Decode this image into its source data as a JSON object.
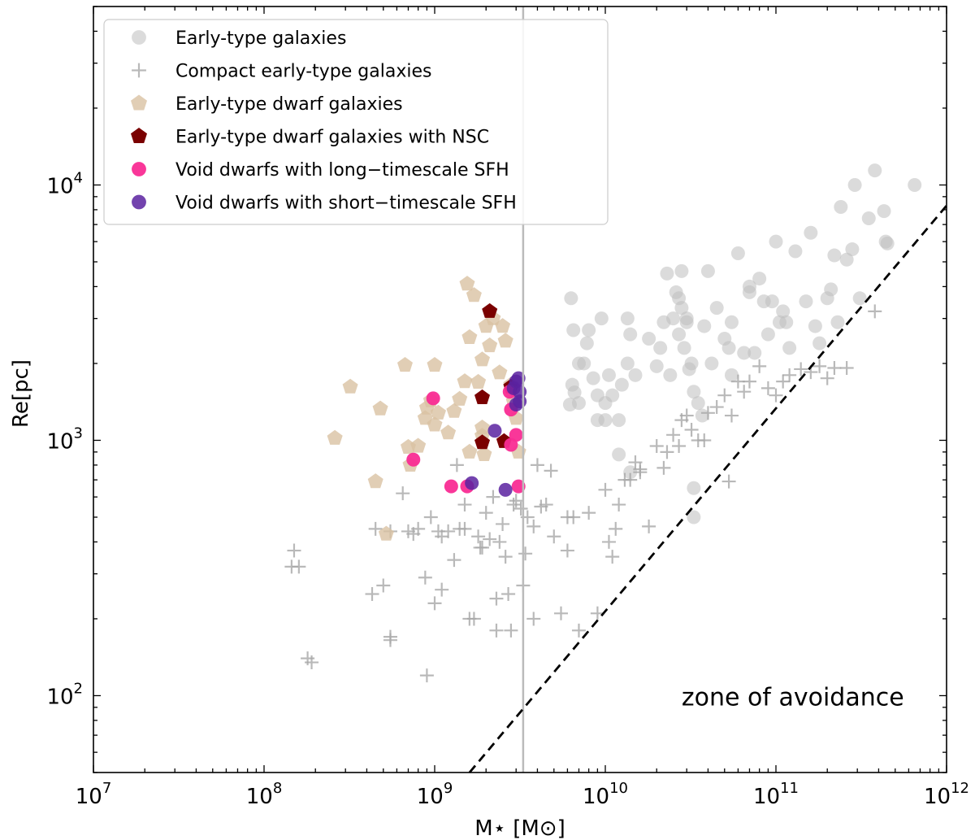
{
  "chart_data": {
    "type": "scatter",
    "xscale": "log",
    "yscale": "log",
    "xlim": [
      10000000,
      1000000000000
    ],
    "ylim": [
      50,
      50000
    ],
    "xlabel": "M⋆ [M⊙]",
    "ylabel": "Re[pc]",
    "x_ticks": [
      {
        "value": 10000000,
        "base": "10",
        "exp": "7"
      },
      {
        "value": 100000000,
        "base": "10",
        "exp": "8"
      },
      {
        "value": 1000000000,
        "base": "10",
        "exp": "9"
      },
      {
        "value": 10000000000,
        "base": "10",
        "exp": "10"
      },
      {
        "value": 100000000000,
        "base": "10",
        "exp": "11"
      },
      {
        "value": 1000000000000,
        "base": "10",
        "exp": "12"
      }
    ],
    "y_ticks": [
      {
        "value": 100,
        "base": "10",
        "exp": "2"
      },
      {
        "value": 1000,
        "base": "10",
        "exp": "3"
      },
      {
        "value": 10000,
        "base": "10",
        "exp": "4"
      }
    ],
    "vertical_line": {
      "x": 3300000000,
      "color": "#bbbbbb"
    },
    "dashed_line": {
      "points": [
        [
          1600000000,
          50
        ],
        [
          1000000000000,
          8300
        ]
      ],
      "color": "#000000"
    },
    "annotation": {
      "text": "zone of avoidance",
      "x": 28000000000,
      "y": 100
    },
    "legend_position": "top-left",
    "series": [
      {
        "name": "Early-type galaxies",
        "marker": "circle",
        "color": "#bdbdbd",
        "opacity": 0.55,
        "points": [
          [
            6300000000.0,
            3600
          ],
          [
            6500000000.0,
            2700
          ],
          [
            6400000000.0,
            1650
          ],
          [
            6200000000.0,
            1380
          ],
          [
            6600000000.0,
            1540
          ],
          [
            7000000000.0,
            1400
          ],
          [
            7500000000.0,
            2000
          ],
          [
            7800000000.0,
            2400
          ],
          [
            8000000000.0,
            2700
          ],
          [
            8500000000.0,
            1750
          ],
          [
            9000000000.0,
            1500
          ],
          [
            9500000000.0,
            3000
          ],
          [
            10000000000.0,
            1200
          ],
          [
            10000000000.0,
            1400
          ],
          [
            10500000000.0,
            1800
          ],
          [
            11000000000.0,
            1500
          ],
          [
            12000000000.0,
            1200
          ],
          [
            12500000000.0,
            1650
          ],
          [
            13500000000.0,
            2000
          ],
          [
            14000000000.0,
            2600
          ],
          [
            13500000000.0,
            3000
          ],
          [
            15000000000.0,
            1800
          ],
          [
            12000000000.0,
            880
          ],
          [
            14000000000.0,
            750
          ],
          [
            18000000000.0,
            2500
          ],
          [
            20000000000.0,
            1950
          ],
          [
            21000000000.0,
            2300
          ],
          [
            23000000000.0,
            4500
          ],
          [
            24000000000.0,
            1800
          ],
          [
            25000000000.0,
            3000
          ],
          [
            26000000000.0,
            3800
          ],
          [
            27000000000.0,
            3600
          ],
          [
            28000000000.0,
            4600
          ],
          [
            28000000000.0,
            3300
          ],
          [
            27000000000.0,
            2600
          ],
          [
            29000000000.0,
            2300
          ],
          [
            30000000000.0,
            2900
          ],
          [
            31000000000.0,
            1900
          ],
          [
            32000000000.0,
            2000
          ],
          [
            33000000000.0,
            1550
          ],
          [
            35000000000.0,
            1400
          ],
          [
            37000000000.0,
            1250
          ],
          [
            33000000000.0,
            650
          ],
          [
            33000000000.0,
            500
          ],
          [
            38000000000.0,
            2800
          ],
          [
            40000000000.0,
            4600
          ],
          [
            45000000000.0,
            3300
          ],
          [
            50000000000.0,
            2500
          ],
          [
            53000000000.0,
            2300
          ],
          [
            55000000000.0,
            2900
          ],
          [
            60000000000.0,
            5400
          ],
          [
            65000000000.0,
            2200
          ],
          [
            70000000000.0,
            3800
          ],
          [
            70000000000.0,
            4000
          ],
          [
            75000000000.0,
            2200
          ],
          [
            80000000000.0,
            4300
          ],
          [
            85000000000.0,
            3500
          ],
          [
            90000000000.0,
            2600
          ],
          [
            95000000000.0,
            3500
          ],
          [
            100000000000.0,
            6000
          ],
          [
            105000000000.0,
            2900
          ],
          [
            110000000000.0,
            3200
          ],
          [
            115000000000.0,
            2900
          ],
          [
            120000000000.0,
            2300
          ],
          [
            130000000000.0,
            5500
          ],
          [
            150000000000.0,
            3500
          ],
          [
            160000000000.0,
            6500
          ],
          [
            170000000000.0,
            2800
          ],
          [
            180000000000.0,
            2400
          ],
          [
            200000000000.0,
            3600
          ],
          [
            210000000000.0,
            3900
          ],
          [
            220000000000.0,
            5300
          ],
          [
            230000000000.0,
            2900
          ],
          [
            240000000000.0,
            8200
          ],
          [
            260000000000.0,
            5100
          ],
          [
            280000000000.0,
            5600
          ],
          [
            290000000000.0,
            10000
          ],
          [
            310000000000.0,
            3600
          ],
          [
            350000000000.0,
            7400
          ],
          [
            380000000000.0,
            11400
          ],
          [
            430000000000.0,
            7900
          ],
          [
            440000000000.0,
            6000
          ],
          [
            450000000000.0,
            5900
          ],
          [
            650000000000.0,
            10000
          ],
          [
            30000000000.0,
            3000
          ],
          [
            55000000000.0,
            1800
          ],
          [
            42000000000.0,
            2000
          ],
          [
            22000000000.0,
            2900
          ],
          [
            7000000000.0,
            2000
          ],
          [
            9000000000.0,
            1200
          ]
        ]
      },
      {
        "name": "Compact early-type galaxies",
        "marker": "plus",
        "color": "#a8a8a8",
        "opacity": 0.8,
        "points": [
          [
            150000000.0,
            370
          ],
          [
            160000000.0,
            320
          ],
          [
            180000000.0,
            140
          ],
          [
            190000000.0,
            135
          ],
          [
            430000000.0,
            250
          ],
          [
            450000000.0,
            450
          ],
          [
            500000000.0,
            270
          ],
          [
            550000000.0,
            165
          ],
          [
            550000000.0,
            170
          ],
          [
            550000000.0,
            440
          ],
          [
            650000000.0,
            620
          ],
          [
            700000000.0,
            440
          ],
          [
            750000000.0,
            430
          ],
          [
            800000000.0,
            450
          ],
          [
            880000000.0,
            290
          ],
          [
            900000000.0,
            120
          ],
          [
            950000000.0,
            500
          ],
          [
            1000000000.0,
            230
          ],
          [
            1050000000.0,
            440
          ],
          [
            1100000000.0,
            260
          ],
          [
            1100000000.0,
            420
          ],
          [
            1200000000.0,
            440
          ],
          [
            1300000000.0,
            340
          ],
          [
            1350000000.0,
            800
          ],
          [
            1400000000.0,
            450
          ],
          [
            1500000000.0,
            560
          ],
          [
            1500000000.0,
            450
          ],
          [
            1600000000.0,
            200
          ],
          [
            1700000000.0,
            200
          ],
          [
            1800000000.0,
            420
          ],
          [
            1850000000.0,
            380
          ],
          [
            1900000000.0,
            380
          ],
          [
            2000000000.0,
            520
          ],
          [
            2100000000.0,
            410
          ],
          [
            2200000000.0,
            600
          ],
          [
            2300000000.0,
            240
          ],
          [
            2300000000.0,
            180
          ],
          [
            2400000000.0,
            400
          ],
          [
            2500000000.0,
            470
          ],
          [
            2600000000.0,
            350
          ],
          [
            2700000000.0,
            250
          ],
          [
            2800000000.0,
            180
          ],
          [
            2900000000.0,
            560
          ],
          [
            3000000000.0,
            580
          ],
          [
            3200000000.0,
            540
          ],
          [
            3300000000.0,
            270
          ],
          [
            3400000000.0,
            360
          ],
          [
            3500000000.0,
            500
          ],
          [
            3800000000.0,
            200
          ],
          [
            3800000000.0,
            460
          ],
          [
            4000000000.0,
            800
          ],
          [
            4200000000.0,
            550
          ],
          [
            4500000000.0,
            560
          ],
          [
            4800000000.0,
            760
          ],
          [
            5000000000.0,
            420
          ],
          [
            5500000000.0,
            210
          ],
          [
            6000000000.0,
            370
          ],
          [
            6500000000.0,
            500
          ],
          [
            7000000000.0,
            180
          ],
          [
            8000000000.0,
            520
          ],
          [
            9000000000.0,
            210
          ],
          [
            10000000000.0,
            640
          ],
          [
            10500000000.0,
            400
          ],
          [
            11000000000.0,
            350
          ],
          [
            11500000000.0,
            450
          ],
          [
            12000000000.0,
            560
          ],
          [
            13000000000.0,
            700
          ],
          [
            14000000000.0,
            700
          ],
          [
            15000000000.0,
            820
          ],
          [
            16000000000.0,
            750
          ],
          [
            18000000000.0,
            460
          ],
          [
            20000000000.0,
            950
          ],
          [
            22000000000.0,
            780
          ],
          [
            23000000000.0,
            900
          ],
          [
            25000000000.0,
            1050
          ],
          [
            27000000000.0,
            950
          ],
          [
            28000000000.0,
            1200
          ],
          [
            30000000000.0,
            1250
          ],
          [
            32000000000.0,
            1100
          ],
          [
            35000000000.0,
            1000
          ],
          [
            38000000000.0,
            1000
          ],
          [
            40000000000.0,
            1280
          ],
          [
            45000000000.0,
            1350
          ],
          [
            50000000000.0,
            1500
          ],
          [
            53000000000.0,
            690
          ],
          [
            55000000000.0,
            1250
          ],
          [
            60000000000.0,
            1700
          ],
          [
            65000000000.0,
            1550
          ],
          [
            70000000000.0,
            1700
          ],
          [
            80000000000.0,
            1950
          ],
          [
            90000000000.0,
            1600
          ],
          [
            100000000000.0,
            1500
          ],
          [
            110000000000.0,
            1700
          ],
          [
            120000000000.0,
            1800
          ],
          [
            140000000000.0,
            1900
          ],
          [
            160000000000.0,
            1850
          ],
          [
            180000000000.0,
            1950
          ],
          [
            200000000000.0,
            1750
          ],
          [
            220000000000.0,
            1920
          ],
          [
            260000000000.0,
            1920
          ],
          [
            380000000000.0,
            3200
          ],
          [
            145000000.0,
            320
          ],
          [
            6000000000.0,
            500
          ],
          [
            16000000000.0,
            770
          ]
        ]
      },
      {
        "name": "Early-type dwarf galaxies",
        "marker": "pentagon",
        "color": "#d9c2a3",
        "opacity": 0.8,
        "points": [
          [
            260000000.0,
            1020
          ],
          [
            320000000.0,
            1620
          ],
          [
            450000000.0,
            690
          ],
          [
            480000000.0,
            1330
          ],
          [
            520000000.0,
            430
          ],
          [
            670000000.0,
            1970
          ],
          [
            700000000.0,
            940
          ],
          [
            720000000.0,
            800
          ],
          [
            800000000.0,
            950
          ],
          [
            880000000.0,
            1220
          ],
          [
            900000000.0,
            1340
          ],
          [
            950000000.0,
            1430
          ],
          [
            1000000000.0,
            1150
          ],
          [
            1000000000.0,
            1970
          ],
          [
            1050000000.0,
            1280
          ],
          [
            1200000000.0,
            1070
          ],
          [
            1300000000.0,
            1300
          ],
          [
            1400000000.0,
            1450
          ],
          [
            1500000000.0,
            1700
          ],
          [
            1600000000.0,
            2530
          ],
          [
            1600000000.0,
            900
          ],
          [
            1700000000.0,
            3700
          ],
          [
            1800000000.0,
            1690
          ],
          [
            1900000000.0,
            1040
          ],
          [
            1900000000.0,
            1120
          ],
          [
            1950000000.0,
            880
          ],
          [
            2000000000.0,
            2800
          ],
          [
            2100000000.0,
            2350
          ],
          [
            2200000000.0,
            3000
          ],
          [
            2400000000.0,
            1840
          ],
          [
            2500000000.0,
            2800
          ],
          [
            2600000000.0,
            2450
          ],
          [
            2800000000.0,
            1650
          ],
          [
            2900000000.0,
            1420
          ],
          [
            3000000000.0,
            1220
          ],
          [
            3100000000.0,
            900
          ],
          [
            1550000000.0,
            4100
          ],
          [
            1900000000.0,
            2070
          ]
        ]
      },
      {
        "name": "Early-type dwarf galaxies with NSC",
        "marker": "pentagon",
        "color": "#7a0000",
        "opacity": 1,
        "points": [
          [
            2100000000.0,
            3200
          ],
          [
            1900000000.0,
            1470
          ],
          [
            1900000000.0,
            980
          ],
          [
            2550000000.0,
            990
          ],
          [
            2800000000.0,
            1620
          ]
        ]
      },
      {
        "name": "Void dwarfs with long−timescale SFH",
        "marker": "circle",
        "color": "#f92c94",
        "opacity": 0.95,
        "points": [
          [
            750000000.0,
            840
          ],
          [
            980000000.0,
            1460
          ],
          [
            1250000000.0,
            660
          ],
          [
            1550000000.0,
            660
          ],
          [
            2750000000.0,
            1550
          ],
          [
            2800000000.0,
            1320
          ],
          [
            2800000000.0,
            960
          ],
          [
            3000000000.0,
            1050
          ],
          [
            3100000000.0,
            660
          ]
        ]
      },
      {
        "name": "Void dwarfs with short−timescale SFH",
        "marker": "circle",
        "color": "#5b22a0",
        "opacity": 0.85,
        "points": [
          [
            1650000000.0,
            680
          ],
          [
            2250000000.0,
            1090
          ],
          [
            2600000000.0,
            640
          ],
          [
            2900000000.0,
            1600
          ],
          [
            3000000000.0,
            1700
          ],
          [
            3000000000.0,
            1380
          ],
          [
            3100000000.0,
            1750
          ],
          [
            3150000000.0,
            1420
          ],
          [
            3150000000.0,
            1550
          ]
        ]
      }
    ]
  }
}
